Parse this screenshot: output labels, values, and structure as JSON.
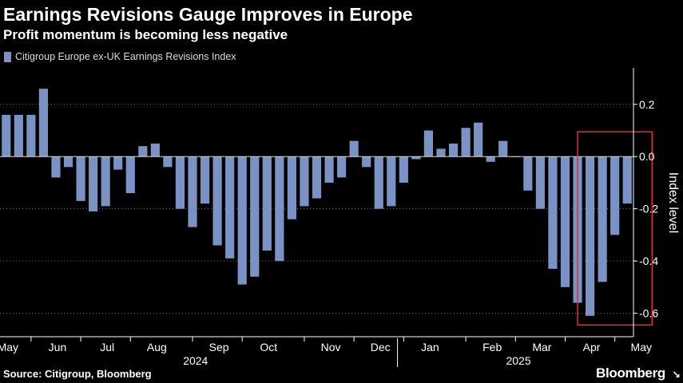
{
  "header": {
    "title": "Earnings Revisions Gauge Improves in Europe",
    "subtitle": "Profit momentum is becoming less negative"
  },
  "footer": {
    "source": "Source: Citigroup, Bloomberg",
    "brand": "Bloomberg",
    "brand_mark": "↘"
  },
  "colors": {
    "bar": "#7a93c4",
    "highlight": "#e0303a",
    "axis": "#ffffff",
    "grid": "#6e6e6e",
    "background": "#000000"
  },
  "chart_data": {
    "type": "bar",
    "title": "Earnings Revisions Gauge Improves in Europe",
    "subtitle": "Profit momentum is becoming less negative",
    "legend": [
      "Citigroup Europe ex-UK Earnings Revisions Index"
    ],
    "ylabel": "Index level",
    "ylim": [
      -0.69,
      0.34
    ],
    "yticks": [
      0.2,
      0.0,
      -0.2,
      -0.4,
      -0.6
    ],
    "ytick_labels": [
      "0.2",
      "0.0",
      "-0.2",
      "-0.4",
      "-0.6"
    ],
    "month_labels": [
      "May",
      "Jun",
      "Jul",
      "Aug",
      "Sep",
      "Oct",
      "Nov",
      "Dec",
      "Jan",
      "Feb",
      "Mar",
      "Apr",
      "May"
    ],
    "month_label_index": [
      0,
      4,
      8,
      12,
      17,
      21,
      26,
      30,
      34,
      39,
      43,
      47,
      51
    ],
    "month_tick_index": [
      2,
      6,
      10,
      15,
      19,
      24,
      28,
      32,
      37,
      41,
      45,
      49
    ],
    "year_labels": [
      "2024",
      "2025"
    ],
    "year_label_index": [
      15.5,
      41.5
    ],
    "year_divider_index": 31.5,
    "highlight_range": {
      "start_index": 46.5,
      "end_index": 52.5,
      "ymin": -0.645,
      "ymax": 0.095
    },
    "series": [
      {
        "name": "Citigroup Europe ex-UK Earnings Revisions Index",
        "values": [
          0.16,
          0.16,
          0.16,
          0.26,
          -0.08,
          -0.04,
          -0.17,
          -0.21,
          -0.19,
          -0.05,
          -0.14,
          0.04,
          0.05,
          -0.04,
          -0.2,
          -0.27,
          -0.18,
          -0.34,
          -0.39,
          -0.49,
          -0.46,
          -0.36,
          -0.4,
          -0.24,
          -0.19,
          -0.16,
          -0.1,
          -0.08,
          0.06,
          -0.04,
          -0.2,
          -0.19,
          -0.1,
          -0.01,
          0.1,
          0.03,
          0.05,
          0.11,
          0.13,
          -0.02,
          0.06,
          0.0,
          -0.13,
          -0.2,
          -0.43,
          -0.5,
          -0.56,
          -0.61,
          -0.48,
          -0.3,
          -0.18
        ]
      }
    ]
  }
}
